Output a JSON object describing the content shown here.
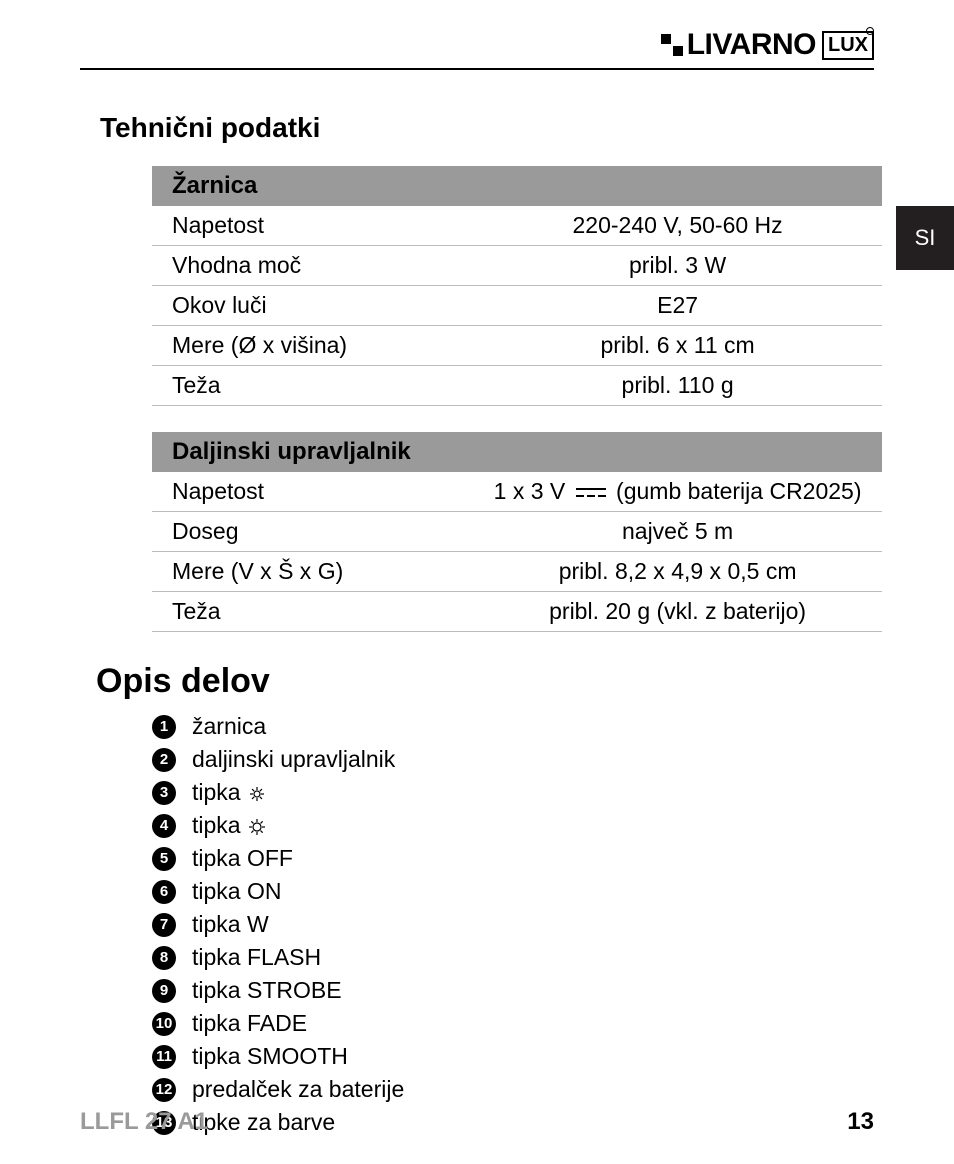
{
  "brand": {
    "name": "LIVARNO",
    "suffix": "LUX"
  },
  "lang_tab": "SI",
  "section_heading": "Tehnični podatki",
  "table1": {
    "header": "Žarnica",
    "rows": [
      {
        "label": "Napetost",
        "value": "220-240 V, 50-60 Hz"
      },
      {
        "label": "Vhodna moč",
        "value": "pribl. 3 W"
      },
      {
        "label": "Okov luči",
        "value": "E27"
      },
      {
        "label": "Mere (Ø x višina)",
        "value": "pribl. 6 x 11 cm"
      },
      {
        "label": "Teža",
        "value": "pribl. 110 g"
      }
    ]
  },
  "table2": {
    "header": "Daljinski upravljalnik",
    "rows": [
      {
        "label": "Napetost",
        "value_pre": "1 x 3 V ",
        "value_post": " (gumb baterija CR2025)",
        "dc": true
      },
      {
        "label": "Doseg",
        "value": "največ 5 m"
      },
      {
        "label": "Mere (V x Š x G)",
        "value": "pribl. 8,2 x 4,9 x 0,5 cm"
      },
      {
        "label": "Teža",
        "value": "pribl. 20 g (vkl. z baterijo)"
      }
    ]
  },
  "main_heading": "Opis delov",
  "parts": [
    {
      "n": "1",
      "text": "žarnica"
    },
    {
      "n": "2",
      "text": "daljinski upravljalnik"
    },
    {
      "n": "3",
      "text": "tipka ",
      "icon": "sun-small"
    },
    {
      "n": "4",
      "text": "tipka ",
      "icon": "sun-large"
    },
    {
      "n": "5",
      "text": "tipka OFF"
    },
    {
      "n": "6",
      "text": "tipka ON"
    },
    {
      "n": "7",
      "text": "tipka W"
    },
    {
      "n": "8",
      "text": "tipka FLASH"
    },
    {
      "n": "9",
      "text": "tipka STROBE"
    },
    {
      "n": "10",
      "text": "tipka FADE"
    },
    {
      "n": "11",
      "text": "tipka SMOOTH"
    },
    {
      "n": "12",
      "text": "predalček za baterije"
    },
    {
      "n": "13",
      "text": "tipke za barve"
    }
  ],
  "footer": {
    "model": "LLFL 27 A1",
    "page": "13"
  },
  "colors": {
    "header_gray": "#9a9a9a",
    "border_gray": "#bcbcbc",
    "tab_bg": "#231f20",
    "text": "#000000",
    "footer_gray": "#9a9a9a"
  }
}
